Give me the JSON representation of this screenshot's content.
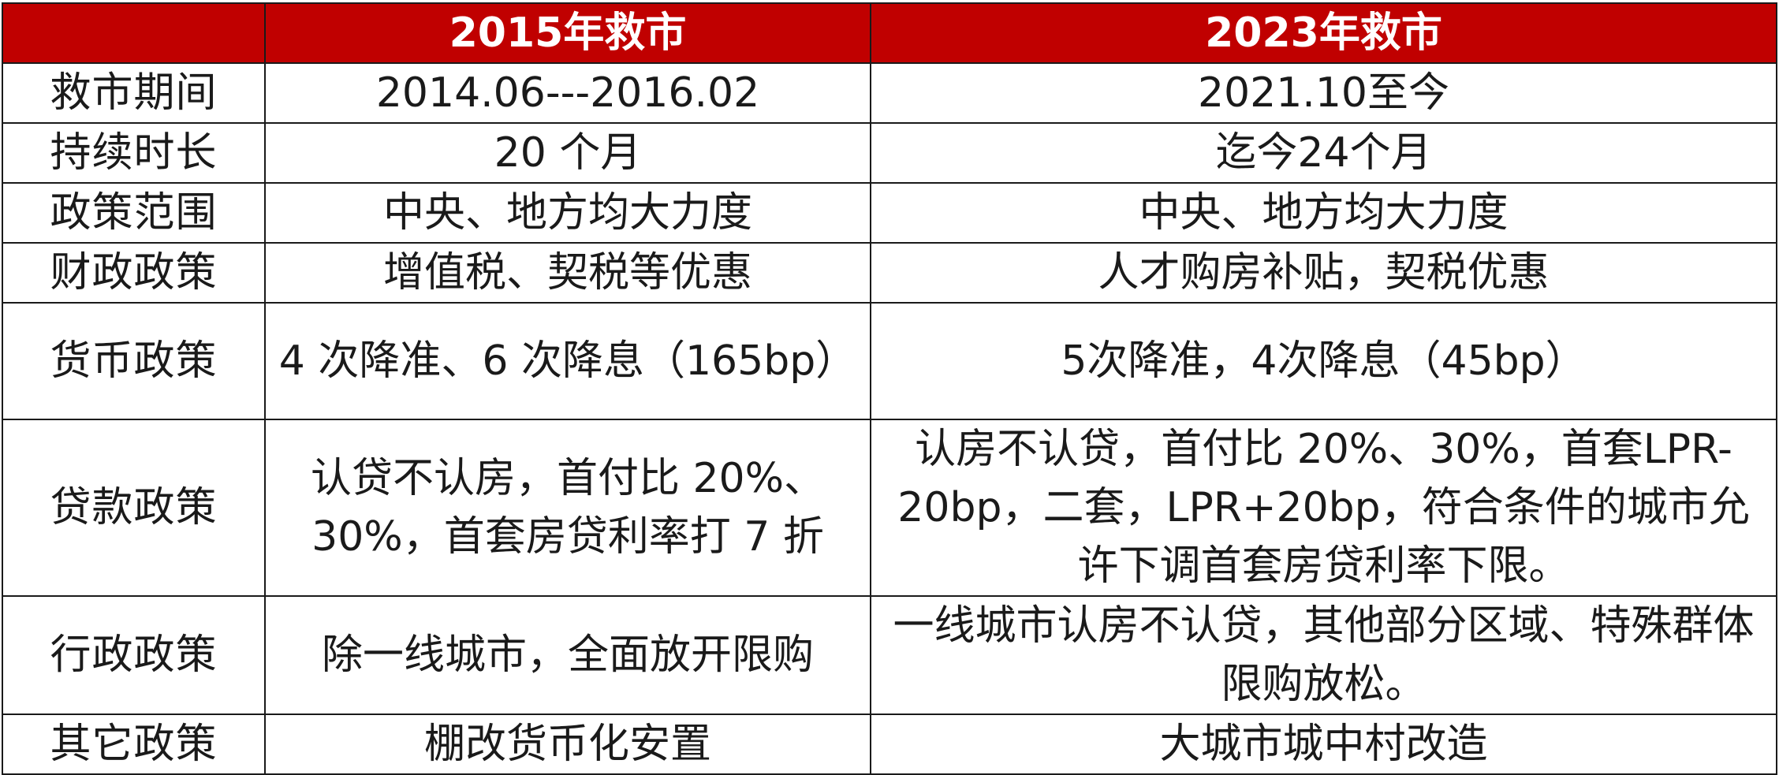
{
  "table": {
    "headers": [
      "",
      "2015年救市",
      "2023年救市"
    ],
    "rows": [
      {
        "label": "救市期间",
        "c2015": "2014.06---2016.02",
        "c2023": "2021.10至今"
      },
      {
        "label": "持续时长",
        "c2015": "20 个月",
        "c2023": "迄今24个月"
      },
      {
        "label": "政策范围",
        "c2015": "中央、地方均大力度",
        "c2023": "中央、地方均大力度"
      },
      {
        "label": "财政政策",
        "c2015": "增值税、契税等优惠",
        "c2023": "人才购房补贴，契税优惠"
      },
      {
        "label": "货币政策",
        "c2015": "4 次降准、6 次降息（165bp）",
        "c2023": "5次降准，4次降息（45bp）"
      },
      {
        "label": "贷款政策",
        "c2015": "认贷不认房，首付比 20%、30%，首套房贷利率打 7 折",
        "c2023": "认房不认贷，首付比 20%、30%，首套LPR-20bp，二套，LPR+20bp，符合条件的城市允许下调首套房贷利率下限。"
      },
      {
        "label": "行政政策",
        "c2015": "除一线城市，全面放开限购",
        "c2023": "一线城市认房不认贷，其他部分区域、特殊群体限购放松。"
      },
      {
        "label": "其它政策",
        "c2015": "棚改货币化安置",
        "c2023": "大城市城中村改造"
      }
    ]
  },
  "colors": {
    "header_bg": "#c00000",
    "header_text": "#ffffff",
    "border": "#1a1a1a",
    "body_text": "#1a1a1a"
  }
}
